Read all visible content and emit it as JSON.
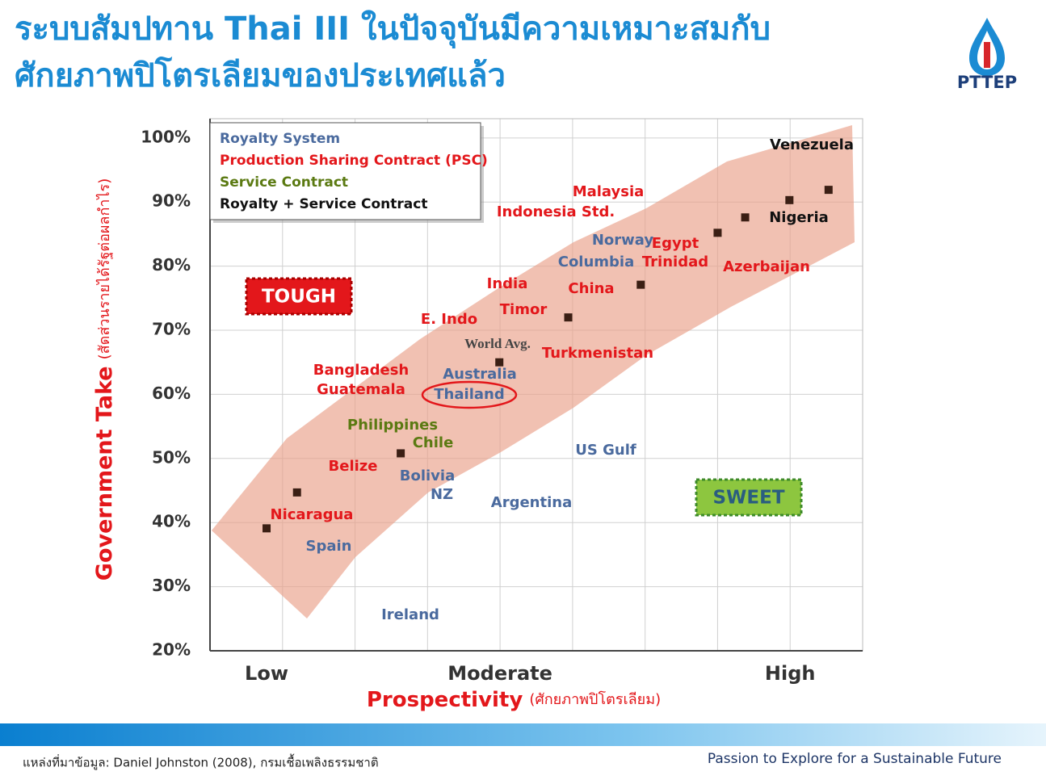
{
  "header": {
    "title_line1": "ระบบสัมปทาน Thai III ในปัจจุบันมีความเหมาะสมกับ",
    "title_line2": "ศักยภาพปิโตรเลียมของประเทศแล้ว",
    "logo_text": "PTTEP"
  },
  "chart_data": {
    "type": "scatter",
    "y_label": "Government Take",
    "y_label_note": "(สัดส่วนรายได้รัฐต่อผลกำไร)",
    "x_label": "Prospectivity",
    "x_label_note": "(ศักยภาพปิโตรเลียม)",
    "x": [
      0.78,
      1.2,
      2.63,
      3.99,
      4.94,
      5.94,
      7.0,
      7.38,
      7.99,
      8.53
    ],
    "values": [
      39.1,
      44.7,
      50.8,
      65.0,
      72.0,
      77.1,
      85.2,
      87.6,
      90.3,
      91.9
    ],
    "color": "#3b1f14",
    "xlim": [
      0,
      9
    ],
    "ylim": [
      20,
      103
    ],
    "xticks": [
      {
        "value": 0.78,
        "label": "Low"
      },
      {
        "value": 4,
        "label": "Moderate"
      },
      {
        "value": 8,
        "label": "High"
      }
    ],
    "x_gridlines": [
      1,
      2,
      3,
      4,
      5,
      6,
      7,
      8
    ],
    "yticks": [
      {
        "value": 20,
        "label": "20%"
      },
      {
        "value": 30,
        "label": "30%"
      },
      {
        "value": 40,
        "label": "40%"
      },
      {
        "value": 50,
        "label": "50%"
      },
      {
        "value": 60,
        "label": "60%"
      },
      {
        "value": 70,
        "label": "70%"
      },
      {
        "value": 80,
        "label": "80%"
      },
      {
        "value": 90,
        "label": "90%"
      },
      {
        "value": 100,
        "label": "100%"
      }
    ],
    "grid": true,
    "legend": "top-left",
    "label_groups": [
      {
        "name": "Royalty System",
        "color": "#4a6a9e",
        "labels": [
          "Norway",
          "Columbia",
          "Australia",
          "Thailand",
          "Bolivia",
          "NZ",
          "Spain",
          "US Gulf",
          "Argentina",
          "Ireland"
        ]
      },
      {
        "name": "Production Sharing Contract (PSC)",
        "color": "#e3171b",
        "labels": [
          "Malaysia",
          "Indonesia Std.",
          "Egypt",
          "Trinidad",
          "Azerbaijan",
          "India",
          "China",
          "Timor",
          "E. Indo",
          "Turkmenistan",
          "Bangladesh",
          "Guatemala",
          "Belize",
          "Nicaragua"
        ]
      },
      {
        "name": "Service Contract",
        "color": "#5b7a12",
        "labels": [
          "Philippines",
          "Chile"
        ]
      },
      {
        "name": "Royalty + Service Contract",
        "color": "#111111",
        "labels": [
          "Venezuela",
          "Nigeria"
        ]
      }
    ],
    "annotations": [
      "TOUGH",
      "SWEET",
      "World Avg."
    ]
  },
  "footer": {
    "source": "แหล่งที่มาข้อมูล: Daniel Johnston (2008), กรมเชื้อเพลิงธรรมชาติ",
    "tagline": "Passion to Explore for a Sustainable Future"
  }
}
